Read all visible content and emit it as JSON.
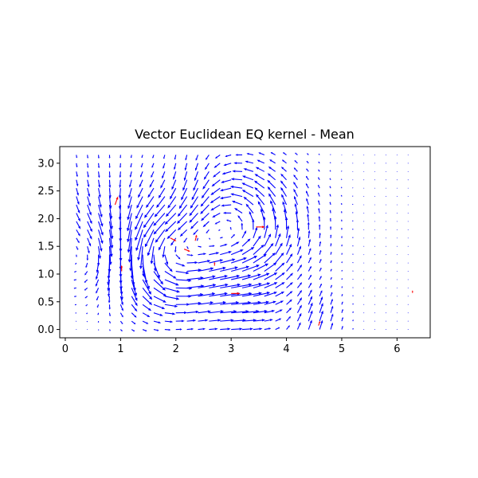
{
  "chart_data": {
    "type": "quiver",
    "title": "Vector Euclidean EQ kernel - Mean",
    "xlabel": "",
    "ylabel": "",
    "xlim": [
      -0.1,
      6.6
    ],
    "ylim": [
      -0.15,
      3.3
    ],
    "xticks": [
      0,
      1,
      2,
      3,
      4,
      5,
      6
    ],
    "yticks": [
      0.0,
      0.5,
      1.0,
      1.5,
      2.0,
      2.5,
      3.0
    ],
    "ytick_labels": [
      "0.0",
      "0.5",
      "1.0",
      "1.5",
      "2.0",
      "2.5",
      "3.0"
    ],
    "grid": false,
    "arrow_color": "#0000ff",
    "observation_color": "#ff0000",
    "grid_x": {
      "start": 0.2,
      "step": 0.2,
      "count": 31
    },
    "grid_y": {
      "start": 0.0,
      "step": 0.15,
      "count": 22
    },
    "vortices": [
      {
        "x": 1.75,
        "y": 1.35,
        "strength": 1.1,
        "radius": 0.65
      },
      {
        "x": 3.05,
        "y": 1.8,
        "strength": 1.0,
        "radius": 0.75
      },
      {
        "x": 0.75,
        "y": 1.4,
        "strength": -0.6,
        "radius": 0.55
      }
    ],
    "flows": [
      {
        "x": 0.5,
        "y": 2.1,
        "u": 0.05,
        "v": -0.35,
        "radius": 0.7
      },
      {
        "x": 3.1,
        "y": 0.35,
        "u": 0.35,
        "v": 0.0,
        "radius": 0.45
      },
      {
        "x": 4.5,
        "y": 0.15,
        "u": 0.1,
        "v": 0.35,
        "radius": 0.35
      },
      {
        "x": 2.4,
        "y": 2.6,
        "u": 0.25,
        "v": -0.2,
        "radius": 0.5
      }
    ],
    "observations": [
      {
        "x": 0.9,
        "y": 2.25,
        "u": 0.1,
        "v": 0.28
      },
      {
        "x": 1.02,
        "y": 1.05,
        "u": 0.0,
        "v": 0.2
      },
      {
        "x": 1.9,
        "y": 1.65,
        "u": 0.2,
        "v": -0.1
      },
      {
        "x": 2.15,
        "y": 1.45,
        "u": 0.2,
        "v": -0.08
      },
      {
        "x": 2.35,
        "y": 1.6,
        "u": 0.05,
        "v": 0.2
      },
      {
        "x": 2.7,
        "y": 1.15,
        "u": 0.0,
        "v": 0.12
      },
      {
        "x": 3.45,
        "y": 1.85,
        "u": 0.3,
        "v": 0.0
      },
      {
        "x": 3.0,
        "y": 0.65,
        "u": 0.3,
        "v": 0.0
      },
      {
        "x": 4.58,
        "y": 0.07,
        "u": 0.05,
        "v": 0.15
      },
      {
        "x": 6.28,
        "y": 0.66,
        "u": 0.0,
        "v": 0.08
      }
    ]
  }
}
